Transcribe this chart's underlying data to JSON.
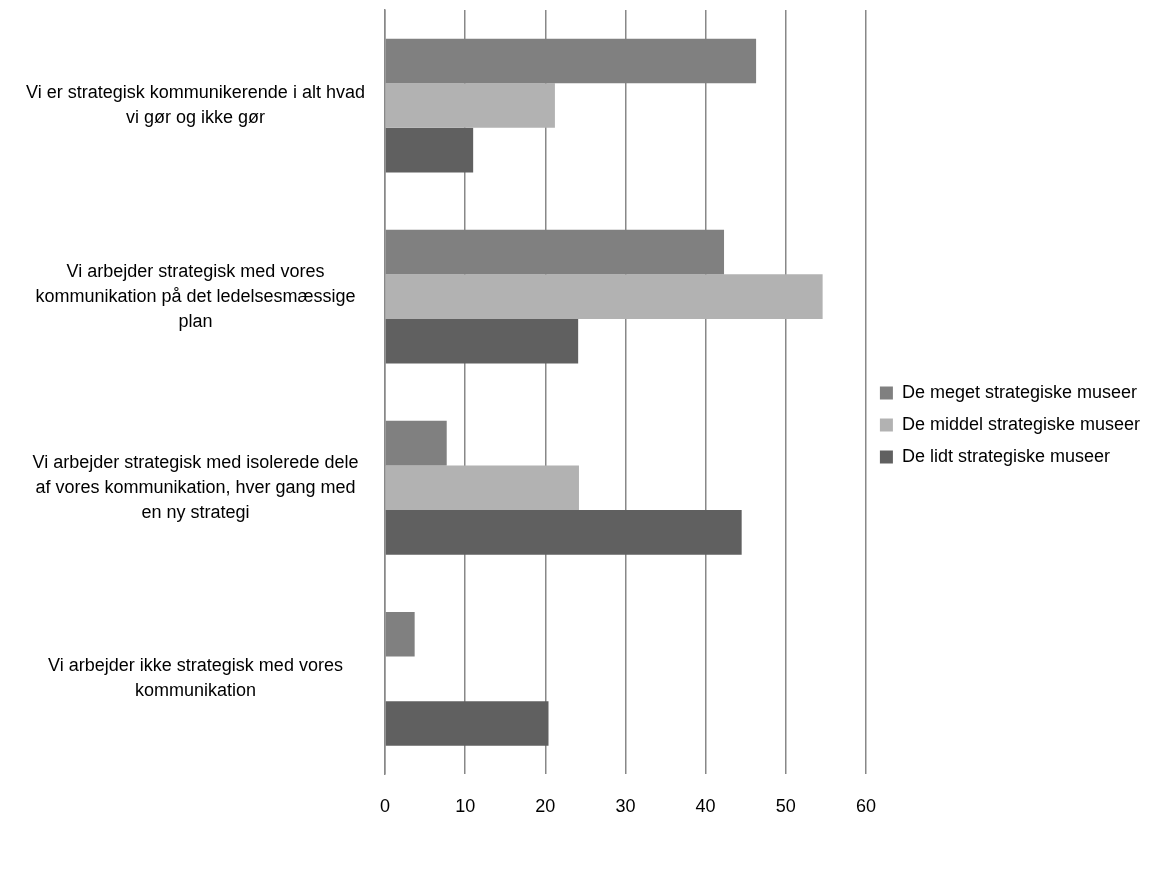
{
  "chart_data": {
    "type": "bar",
    "orientation": "horizontal",
    "categories": [
      "Vi er strategisk kommunikerende i alt hvad vi gør og ikke gør",
      "Vi arbejder strategisk med vores kommunikation på det ledelsesmæssige plan",
      "Vi arbejder strategisk med isolerede dele af vores kommunikation, hver gang med en ny strategi",
      "Vi arbejder ikke strategisk med vores kommunikation"
    ],
    "series": [
      {
        "name": "De meget strategiske museer",
        "color": "#808080",
        "values": [
          46.3,
          42.3,
          7.7,
          3.7
        ]
      },
      {
        "name": "De middel strategiske museer",
        "color": "#b2b2b2",
        "values": [
          21.2,
          54.6,
          24.2,
          0
        ]
      },
      {
        "name": "De lidt strategiske museer",
        "color": "#606060",
        "values": [
          11,
          24.1,
          44.5,
          20.4
        ]
      }
    ],
    "xlim": [
      0,
      60
    ],
    "xticks": [
      0,
      10,
      20,
      30,
      40,
      50,
      60
    ],
    "grid": "x",
    "legend": "right"
  }
}
